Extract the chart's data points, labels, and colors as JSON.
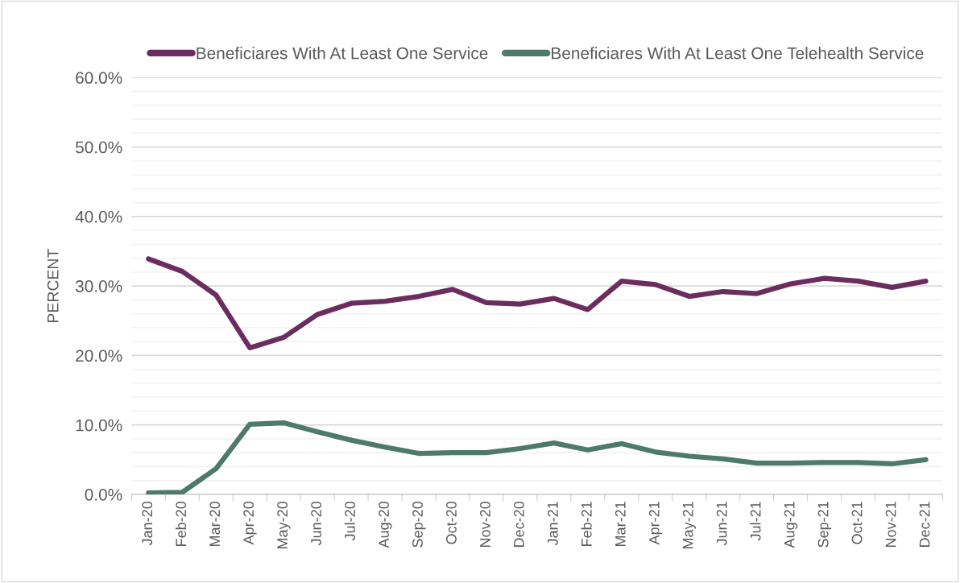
{
  "chart_data": {
    "type": "line",
    "ylabel": "PERCENT",
    "categories": [
      "Jan-20",
      "Feb-20",
      "Mar-20",
      "Apr-20",
      "May-20",
      "Jun-20",
      "Jul-20",
      "Aug-20",
      "Sep-20",
      "Oct-20",
      "Nov-20",
      "Dec-20",
      "Jan-21",
      "Feb-21",
      "Mar-21",
      "Apr-21",
      "May-21",
      "Jun-21",
      "Jul-21",
      "Aug-21",
      "Sep-21",
      "Oct-21",
      "Nov-21",
      "Dec-21"
    ],
    "series": [
      {
        "name": "Beneficiares With At Least One Service",
        "color": "#6b2c5f",
        "values": [
          33.9,
          32.1,
          28.7,
          21.1,
          22.6,
          25.9,
          27.5,
          27.8,
          28.5,
          29.5,
          27.6,
          27.4,
          28.2,
          26.6,
          30.7,
          30.2,
          28.5,
          29.2,
          28.9,
          30.3,
          31.1,
          30.7,
          29.8,
          30.7
        ]
      },
      {
        "name": "Beneficiares With At Least One Telehealth Service",
        "color": "#4d7a6a",
        "values": [
          0.2,
          0.3,
          3.7,
          10.1,
          10.3,
          9.0,
          7.8,
          6.8,
          5.9,
          6.0,
          6.0,
          6.6,
          7.4,
          6.4,
          7.3,
          6.1,
          5.5,
          5.1,
          4.5,
          4.5,
          4.6,
          4.6,
          4.4,
          5.0
        ]
      }
    ],
    "ylim": [
      0,
      60
    ],
    "yticks": [
      {
        "value": 0,
        "label": "0.0%"
      },
      {
        "value": 2,
        "label": null
      },
      {
        "value": 4,
        "label": null
      },
      {
        "value": 6,
        "label": null
      },
      {
        "value": 8,
        "label": null
      },
      {
        "value": 10,
        "label": "10.0%"
      },
      {
        "value": 12,
        "label": null
      },
      {
        "value": 14,
        "label": null
      },
      {
        "value": 16,
        "label": null
      },
      {
        "value": 18,
        "label": null
      },
      {
        "value": 20,
        "label": "20.0%"
      },
      {
        "value": 22,
        "label": null
      },
      {
        "value": 24,
        "label": null
      },
      {
        "value": 26,
        "label": null
      },
      {
        "value": 28,
        "label": null
      },
      {
        "value": 30,
        "label": "30.0%"
      },
      {
        "value": 32,
        "label": null
      },
      {
        "value": 34,
        "label": null
      },
      {
        "value": 36,
        "label": null
      },
      {
        "value": 38,
        "label": null
      },
      {
        "value": 40,
        "label": "40.0%"
      },
      {
        "value": 42,
        "label": null
      },
      {
        "value": 44,
        "label": null
      },
      {
        "value": 46,
        "label": null
      },
      {
        "value": 48,
        "label": null
      },
      {
        "value": 50,
        "label": "50.0%"
      },
      {
        "value": 52,
        "label": null
      },
      {
        "value": 54,
        "label": null
      },
      {
        "value": 56,
        "label": null
      },
      {
        "value": 58,
        "label": null
      },
      {
        "value": 60,
        "label": "60.0%"
      }
    ],
    "grid": "y",
    "legend": "top",
    "marker": "none",
    "line_style": "solid"
  }
}
